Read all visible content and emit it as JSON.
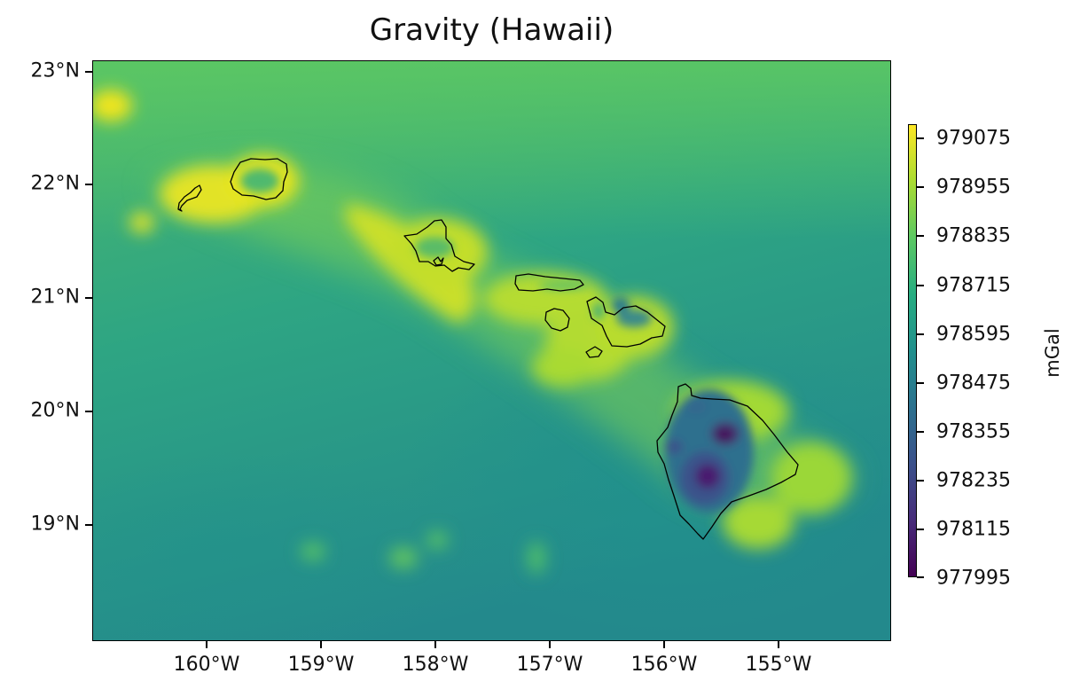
{
  "title": "Gravity (Hawaii)",
  "map": {
    "lon_range": [
      -161.1,
      -154.1
    ],
    "lat_range": [
      18.0,
      23.1
    ],
    "coastline_color": "#000000"
  },
  "latitude_labels": [
    "23°N",
    "22°N",
    "21°N",
    "20°N",
    "19°N"
  ],
  "latitude_values": [
    23,
    22,
    21,
    20,
    19
  ],
  "longitude_labels": [
    "160°W",
    "159°W",
    "158°W",
    "157°W",
    "156°W",
    "155°W"
  ],
  "longitude_values": [
    -160,
    -159,
    -158,
    -157,
    -156,
    -155
  ],
  "colorbar": {
    "label": "mGal",
    "colormap": "viridis",
    "tick_labels": [
      "979075",
      "978955",
      "978835",
      "978715",
      "978595",
      "978475",
      "978355",
      "978235",
      "978115",
      "977995"
    ],
    "range": [
      977995,
      979095
    ]
  },
  "islands": [
    "Niihau",
    "Kauai",
    "Oahu",
    "Molokai",
    "Lanai",
    "Maui",
    "Kahoolawe",
    "Hawaii"
  ]
}
